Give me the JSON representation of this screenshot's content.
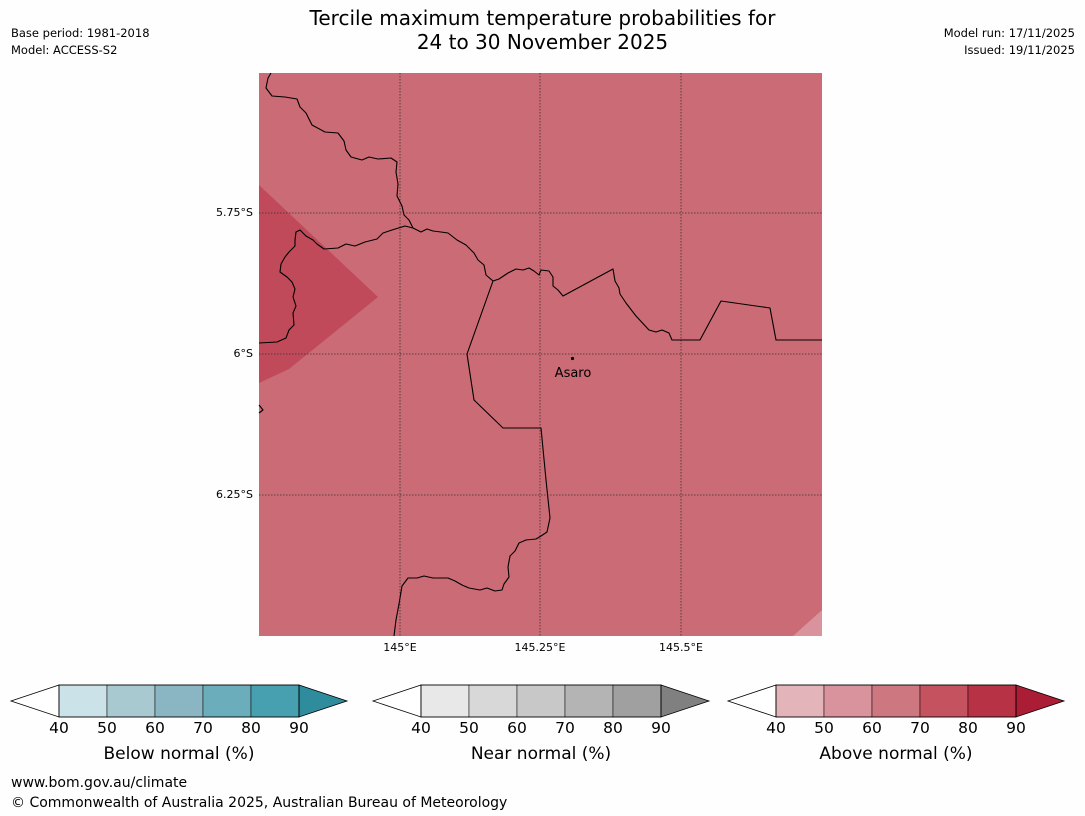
{
  "title": {
    "line1": "Tercile maximum temperature probabilities for",
    "line2": "24 to 30 November 2025"
  },
  "meta": {
    "base_period": "Base period: 1981-2018",
    "model": "Model: ACCESS-S2",
    "model_run": "Model run: 17/11/2025",
    "issued": "Issued: 19/11/2025"
  },
  "map": {
    "lat_labels": [
      "5.75°S",
      "6°S",
      "6.25°S"
    ],
    "lon_labels": [
      "145°E",
      "145.25°E",
      "145.5°E"
    ],
    "place": "Asaro",
    "colors": {
      "above_60_70": "#cb6b75",
      "above_70_80": "#c04a5a",
      "above_50_60": "#d9939c"
    }
  },
  "colorbars": [
    {
      "label": "Below normal (%)",
      "ticks": [
        "40",
        "50",
        "60",
        "70",
        "80",
        "90"
      ],
      "colors": [
        "#ffffff",
        "#cbe3e8",
        "#a8c9cf",
        "#8ab6c3",
        "#6badbb",
        "#47a0b0",
        "#2f8c9c"
      ]
    },
    {
      "label": "Near normal (%)",
      "ticks": [
        "40",
        "50",
        "60",
        "70",
        "80",
        "90"
      ],
      "colors": [
        "#ffffff",
        "#e8e8e8",
        "#d8d8d8",
        "#c8c8c8",
        "#b4b4b4",
        "#a0a0a0",
        "#808080"
      ]
    },
    {
      "label": "Above normal (%)",
      "ticks": [
        "40",
        "50",
        "60",
        "70",
        "80",
        "90"
      ],
      "colors": [
        "#ffffff",
        "#e3b5bb",
        "#d9939c",
        "#cd7780",
        "#c5535f",
        "#b83246",
        "#ab1c35"
      ]
    }
  ],
  "footer": {
    "url": "www.bom.gov.au/climate",
    "copyright": "© Commonwealth of Australia 2025, Australian Bureau of Meteorology"
  }
}
